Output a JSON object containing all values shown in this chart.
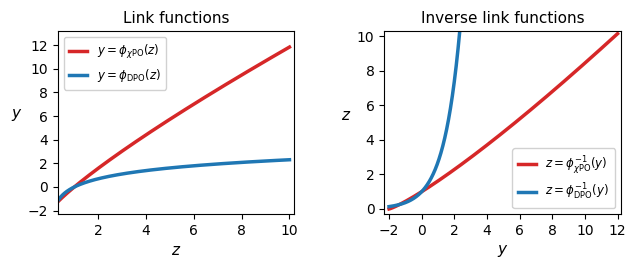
{
  "title_left": "Link functions",
  "title_right": "Inverse link functions",
  "xlabel_left": "z",
  "ylabel_left": "y",
  "xlabel_right": "y",
  "ylabel_right": "z",
  "xlim_left": [
    0.3,
    10.2
  ],
  "ylim_left": [
    -2.3,
    13.2
  ],
  "xlim_right": [
    -2.3,
    12.2
  ],
  "ylim_right": [
    -0.3,
    10.3
  ],
  "red_color": "#d62728",
  "blue_color": "#1f77b4",
  "linewidth": 2.5,
  "label_left_red": "$y = \\phi_{\\chi\\mathrm{PO}}(z)$",
  "label_left_blue": "$y = \\phi_{\\mathrm{DPO}}(z)$",
  "label_right_red": "$z = \\phi_{\\chi\\mathrm{PO}}^{-1}(y)$",
  "label_right_blue": "$z = \\phi_{\\mathrm{DPO}}^{-1}(y)$",
  "yticks_left": [
    -2,
    0,
    2,
    4,
    6,
    8,
    10,
    12
  ],
  "xticks_left": [
    2,
    4,
    6,
    8,
    10
  ],
  "yticks_right": [
    0,
    2,
    4,
    6,
    8,
    10
  ],
  "xticks_right": [
    -2,
    0,
    2,
    4,
    6,
    8,
    10,
    12
  ],
  "xpo_power": 0.84,
  "figsize": [
    6.4,
    2.58
  ],
  "dpi": 100
}
